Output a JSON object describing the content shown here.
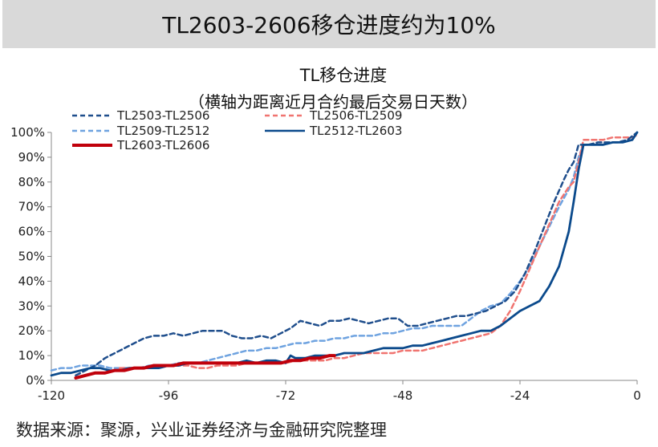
{
  "banner": {
    "title": "TL2603-2606移仓进度约为10%"
  },
  "source": "数据来源：聚源，兴业证券经济与金融研究院整理",
  "chart_data": {
    "type": "line",
    "title": "TL移仓进度",
    "subtitle": "（横轴为距离近月合约最后交易日天数）",
    "xlabel": "",
    "ylabel": "",
    "xlim": [
      -120,
      0
    ],
    "ylim": [
      0,
      100
    ],
    "x_ticks": [
      "-120",
      "-96",
      "-72",
      "-48",
      "-24",
      "0"
    ],
    "y_ticks": [
      "0%",
      "10%",
      "20%",
      "30%",
      "40%",
      "50%",
      "60%",
      "70%",
      "80%",
      "90%",
      "100%"
    ],
    "grid": false,
    "legend": "top-left",
    "series": [
      {
        "name": "TL2503-TL2506",
        "color": "#1f4e8c",
        "dash": "dashed",
        "points": [
          [
            -115,
            2
          ],
          [
            -113,
            4
          ],
          [
            -111,
            6
          ],
          [
            -109,
            9
          ],
          [
            -107,
            11
          ],
          [
            -105,
            13
          ],
          [
            -103,
            15
          ],
          [
            -101,
            17
          ],
          [
            -99,
            18
          ],
          [
            -97,
            18
          ],
          [
            -95,
            19
          ],
          [
            -93,
            18
          ],
          [
            -91,
            19
          ],
          [
            -89,
            20
          ],
          [
            -87,
            20
          ],
          [
            -85,
            20
          ],
          [
            -83,
            18
          ],
          [
            -81,
            17
          ],
          [
            -79,
            17
          ],
          [
            -77,
            18
          ],
          [
            -75,
            17
          ],
          [
            -73,
            19
          ],
          [
            -71,
            21
          ],
          [
            -69,
            24
          ],
          [
            -67,
            23
          ],
          [
            -65,
            22
          ],
          [
            -63,
            24
          ],
          [
            -61,
            24
          ],
          [
            -59,
            25
          ],
          [
            -57,
            24
          ],
          [
            -55,
            23
          ],
          [
            -53,
            24
          ],
          [
            -51,
            25
          ],
          [
            -49,
            25
          ],
          [
            -47,
            22
          ],
          [
            -45,
            22
          ],
          [
            -43,
            23
          ],
          [
            -41,
            24
          ],
          [
            -39,
            25
          ],
          [
            -37,
            26
          ],
          [
            -35,
            26
          ],
          [
            -33,
            27
          ],
          [
            -31,
            28
          ],
          [
            -29,
            30
          ],
          [
            -27,
            32
          ],
          [
            -25,
            36
          ],
          [
            -23,
            43
          ],
          [
            -21,
            52
          ],
          [
            -19,
            62
          ],
          [
            -17,
            72
          ],
          [
            -15,
            81
          ],
          [
            -14,
            85
          ],
          [
            -13,
            88
          ],
          [
            -12,
            95
          ],
          [
            -10,
            95
          ],
          [
            -8,
            96
          ],
          [
            -6,
            96
          ],
          [
            -4,
            96
          ],
          [
            -2,
            97
          ],
          [
            0,
            100
          ]
        ]
      },
      {
        "name": "TL2506-TL2509",
        "color": "#f07470",
        "dash": "dashed",
        "points": [
          [
            -106,
            5
          ],
          [
            -104,
            5
          ],
          [
            -102,
            5
          ],
          [
            -100,
            5
          ],
          [
            -98,
            5
          ],
          [
            -96,
            6
          ],
          [
            -94,
            6
          ],
          [
            -92,
            6
          ],
          [
            -90,
            5
          ],
          [
            -88,
            5
          ],
          [
            -86,
            6
          ],
          [
            -84,
            6
          ],
          [
            -82,
            6
          ],
          [
            -80,
            7
          ],
          [
            -78,
            7
          ],
          [
            -76,
            7
          ],
          [
            -74,
            7
          ],
          [
            -72,
            7
          ],
          [
            -70,
            8
          ],
          [
            -68,
            8
          ],
          [
            -66,
            8
          ],
          [
            -64,
            8
          ],
          [
            -62,
            9
          ],
          [
            -60,
            9
          ],
          [
            -58,
            10
          ],
          [
            -56,
            11
          ],
          [
            -54,
            11
          ],
          [
            -52,
            11
          ],
          [
            -50,
            11
          ],
          [
            -48,
            12
          ],
          [
            -46,
            12
          ],
          [
            -44,
            12
          ],
          [
            -42,
            13
          ],
          [
            -40,
            14
          ],
          [
            -38,
            15
          ],
          [
            -36,
            16
          ],
          [
            -34,
            17
          ],
          [
            -32,
            18
          ],
          [
            -30,
            19
          ],
          [
            -28,
            22
          ],
          [
            -26,
            28
          ],
          [
            -24,
            36
          ],
          [
            -22,
            45
          ],
          [
            -20,
            54
          ],
          [
            -18,
            63
          ],
          [
            -16,
            72
          ],
          [
            -14,
            78
          ],
          [
            -13,
            80
          ],
          [
            -12,
            88
          ],
          [
            -11,
            97
          ],
          [
            -9,
            97
          ],
          [
            -7,
            97
          ],
          [
            -5,
            98
          ],
          [
            -3,
            98
          ],
          [
            -1,
            98
          ],
          [
            0,
            99
          ]
        ]
      },
      {
        "name": "TL2509-TL2512",
        "color": "#6fa3e0",
        "dash": "dashed",
        "points": [
          [
            -120,
            4
          ],
          [
            -118,
            5
          ],
          [
            -116,
            5
          ],
          [
            -114,
            6
          ],
          [
            -112,
            6
          ],
          [
            -110,
            6
          ],
          [
            -108,
            5
          ],
          [
            -106,
            5
          ],
          [
            -104,
            5
          ],
          [
            -102,
            5
          ],
          [
            -100,
            6
          ],
          [
            -98,
            6
          ],
          [
            -96,
            6
          ],
          [
            -94,
            7
          ],
          [
            -92,
            7
          ],
          [
            -90,
            7
          ],
          [
            -88,
            8
          ],
          [
            -86,
            9
          ],
          [
            -84,
            10
          ],
          [
            -82,
            11
          ],
          [
            -80,
            12
          ],
          [
            -78,
            12
          ],
          [
            -76,
            13
          ],
          [
            -74,
            13
          ],
          [
            -72,
            14
          ],
          [
            -70,
            15
          ],
          [
            -68,
            15
          ],
          [
            -66,
            16
          ],
          [
            -64,
            16
          ],
          [
            -62,
            17
          ],
          [
            -60,
            17
          ],
          [
            -58,
            18
          ],
          [
            -56,
            18
          ],
          [
            -54,
            18
          ],
          [
            -52,
            19
          ],
          [
            -50,
            19
          ],
          [
            -48,
            20
          ],
          [
            -46,
            21
          ],
          [
            -44,
            21
          ],
          [
            -42,
            22
          ],
          [
            -40,
            22
          ],
          [
            -38,
            22
          ],
          [
            -36,
            22
          ],
          [
            -34,
            25
          ],
          [
            -32,
            28
          ],
          [
            -30,
            30
          ],
          [
            -28,
            31
          ],
          [
            -26,
            35
          ],
          [
            -24,
            40
          ],
          [
            -22,
            46
          ],
          [
            -20,
            54
          ],
          [
            -18,
            62
          ],
          [
            -16,
            70
          ],
          [
            -14,
            77
          ],
          [
            -13,
            82
          ],
          [
            -12,
            90
          ],
          [
            -11,
            95
          ],
          [
            -9,
            95
          ],
          [
            -7,
            95
          ],
          [
            -5,
            96
          ],
          [
            -3,
            96
          ],
          [
            -1,
            97
          ],
          [
            0,
            100
          ]
        ]
      },
      {
        "name": "TL2512-TL2603",
        "color": "#0b4a8c",
        "dash": "solid",
        "points": [
          [
            -120,
            2
          ],
          [
            -118,
            3
          ],
          [
            -116,
            3
          ],
          [
            -114,
            4
          ],
          [
            -112,
            5
          ],
          [
            -110,
            5
          ],
          [
            -108,
            4
          ],
          [
            -106,
            4
          ],
          [
            -104,
            5
          ],
          [
            -102,
            5
          ],
          [
            -100,
            5
          ],
          [
            -98,
            5
          ],
          [
            -96,
            6
          ],
          [
            -94,
            6
          ],
          [
            -92,
            7
          ],
          [
            -90,
            7
          ],
          [
            -88,
            7
          ],
          [
            -86,
            7
          ],
          [
            -84,
            7
          ],
          [
            -82,
            7
          ],
          [
            -80,
            8
          ],
          [
            -78,
            7
          ],
          [
            -76,
            8
          ],
          [
            -74,
            8
          ],
          [
            -72,
            7
          ],
          [
            -71,
            10
          ],
          [
            -70,
            9
          ],
          [
            -68,
            9
          ],
          [
            -66,
            10
          ],
          [
            -64,
            10
          ],
          [
            -62,
            10
          ],
          [
            -60,
            11
          ],
          [
            -58,
            11
          ],
          [
            -56,
            11
          ],
          [
            -54,
            12
          ],
          [
            -52,
            13
          ],
          [
            -50,
            13
          ],
          [
            -48,
            13
          ],
          [
            -46,
            14
          ],
          [
            -44,
            14
          ],
          [
            -42,
            15
          ],
          [
            -40,
            16
          ],
          [
            -38,
            17
          ],
          [
            -36,
            18
          ],
          [
            -34,
            19
          ],
          [
            -32,
            20
          ],
          [
            -30,
            20
          ],
          [
            -28,
            22
          ],
          [
            -26,
            25
          ],
          [
            -24,
            28
          ],
          [
            -22,
            30
          ],
          [
            -20,
            32
          ],
          [
            -18,
            38
          ],
          [
            -16,
            46
          ],
          [
            -14,
            60
          ],
          [
            -13,
            72
          ],
          [
            -12,
            85
          ],
          [
            -11,
            95
          ],
          [
            -9,
            95
          ],
          [
            -7,
            95
          ],
          [
            -5,
            96
          ],
          [
            -3,
            96
          ],
          [
            -1,
            97
          ],
          [
            0,
            100
          ]
        ]
      },
      {
        "name": "TL2603-TL2606",
        "color": "#c0000b",
        "dash": "solid",
        "points": [
          [
            -115,
            1
          ],
          [
            -113,
            2
          ],
          [
            -111,
            3
          ],
          [
            -109,
            3
          ],
          [
            -107,
            4
          ],
          [
            -105,
            4
          ],
          [
            -103,
            5
          ],
          [
            -101,
            5
          ],
          [
            -99,
            6
          ],
          [
            -97,
            6
          ],
          [
            -95,
            6
          ],
          [
            -93,
            7
          ],
          [
            -91,
            7
          ],
          [
            -89,
            7
          ],
          [
            -87,
            7
          ],
          [
            -85,
            7
          ],
          [
            -83,
            7
          ],
          [
            -81,
            7
          ],
          [
            -79,
            7
          ],
          [
            -77,
            7
          ],
          [
            -75,
            7
          ],
          [
            -73,
            7
          ],
          [
            -71,
            8
          ],
          [
            -69,
            8
          ],
          [
            -67,
            9
          ],
          [
            -65,
            9
          ],
          [
            -63,
            10
          ],
          [
            -62,
            10
          ]
        ]
      }
    ]
  }
}
